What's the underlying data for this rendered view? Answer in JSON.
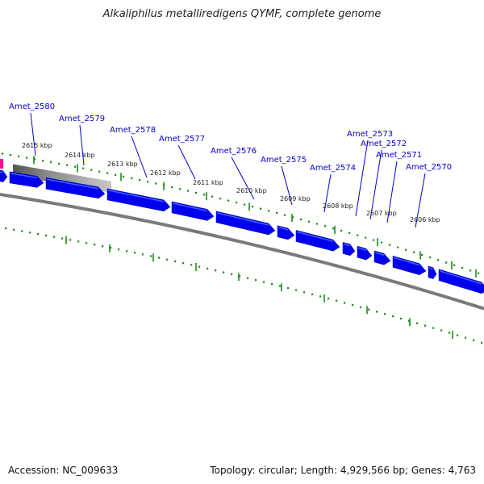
{
  "title": "Alkaliphilus metalliredigens QYMF, complete genome",
  "footer": {
    "accession": "Accession: NC_009633",
    "stats": "Topology: circular; Length: 4,929,566 bp; Genes: 4,763"
  },
  "colors": {
    "gene": "#0000ee",
    "gene_highlight": "#3a64ff",
    "backbone": "#7a7a7a",
    "tick": "#1a8a1a",
    "label": "#0000cc",
    "marker": "#ee1188"
  },
  "ticks": [
    {
      "label": "2615 kbp"
    },
    {
      "label": "2614 kbp"
    },
    {
      "label": "2613 kbp"
    },
    {
      "label": "2612 kbp"
    },
    {
      "label": "2611 kbp"
    },
    {
      "label": "2610 kbp"
    },
    {
      "label": "2609 kbp"
    },
    {
      "label": "2608 kbp"
    },
    {
      "label": "2607 kbp"
    },
    {
      "label": "2606 kbp"
    }
  ],
  "genes": [
    {
      "name": "Amet_2580"
    },
    {
      "name": "Amet_2579"
    },
    {
      "name": "Amet_2578"
    },
    {
      "name": "Amet_2577"
    },
    {
      "name": "Amet_2576"
    },
    {
      "name": "Amet_2575"
    },
    {
      "name": "Amet_2574"
    },
    {
      "name": "Amet_2573"
    },
    {
      "name": "Amet_2572"
    },
    {
      "name": "Amet_2571"
    },
    {
      "name": "Amet_2570"
    }
  ]
}
